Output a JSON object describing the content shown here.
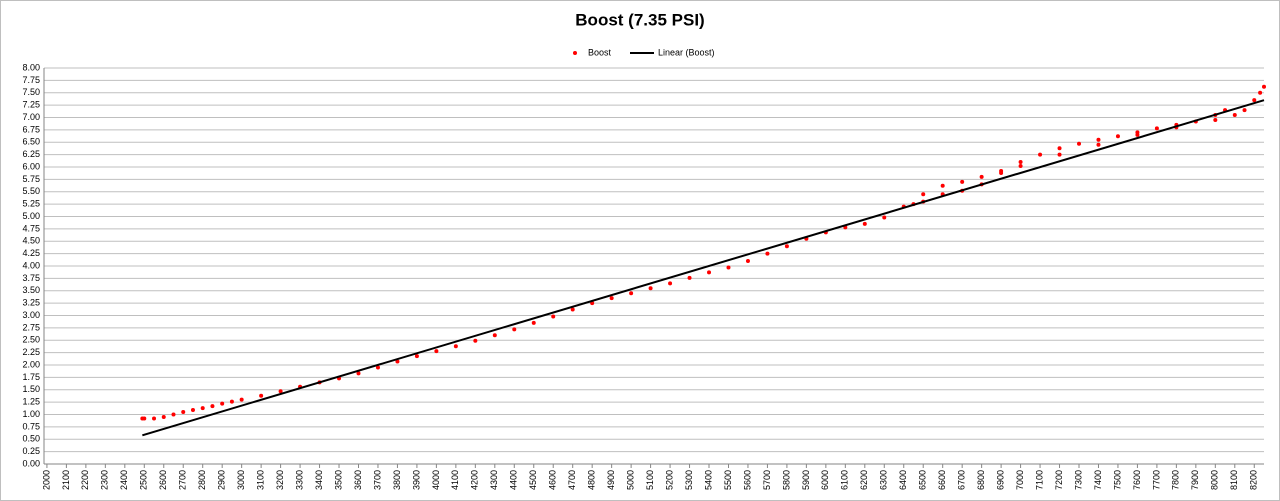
{
  "chart_data": {
    "type": "scatter",
    "title": "Boost (7.35 PSI)",
    "xlim": [
      1985,
      8250
    ],
    "ylim": [
      0,
      8
    ],
    "xticks": [
      2000,
      2100,
      2200,
      2300,
      2400,
      2500,
      2600,
      2700,
      2800,
      2900,
      3000,
      3100,
      3200,
      3300,
      3400,
      3500,
      3600,
      3700,
      3800,
      3900,
      4000,
      4100,
      4200,
      4300,
      4400,
      4500,
      4600,
      4700,
      4800,
      4900,
      5000,
      5100,
      5200,
      5300,
      5400,
      5500,
      5600,
      5700,
      5800,
      5900,
      6000,
      6100,
      6200,
      6300,
      6400,
      6500,
      6600,
      6700,
      6800,
      6900,
      7000,
      7100,
      7200,
      7300,
      7400,
      7500,
      7600,
      7700,
      7800,
      7900,
      8000,
      8100,
      8200
    ],
    "yticks": [
      {
        "value": 0,
        "label": "0.00"
      },
      {
        "value": 0.25,
        "label": "0.25"
      },
      {
        "value": 0.5,
        "label": "0.50"
      },
      {
        "value": 0.75,
        "label": "0.75"
      },
      {
        "value": 1,
        "label": "1.00"
      },
      {
        "value": 1.25,
        "label": "1.25"
      },
      {
        "value": 1.5,
        "label": "1.50"
      },
      {
        "value": 1.75,
        "label": "1.75"
      },
      {
        "value": 2,
        "label": "2.00"
      },
      {
        "value": 2.25,
        "label": "2.25"
      },
      {
        "value": 2.5,
        "label": "2.50"
      },
      {
        "value": 2.75,
        "label": "2.75"
      },
      {
        "value": 3,
        "label": "3.00"
      },
      {
        "value": 3.25,
        "label": "3.25"
      },
      {
        "value": 3.5,
        "label": "3.50"
      },
      {
        "value": 3.75,
        "label": "3.75"
      },
      {
        "value": 4,
        "label": "4.00"
      },
      {
        "value": 4.25,
        "label": "4.25"
      },
      {
        "value": 4.5,
        "label": "4.50"
      },
      {
        "value": 4.75,
        "label": "4.75"
      },
      {
        "value": 5,
        "label": "5.00"
      },
      {
        "value": 5.25,
        "label": "5.25"
      },
      {
        "value": 5.5,
        "label": "5.50"
      },
      {
        "value": 5.75,
        "label": "5.75"
      },
      {
        "value": 6,
        "label": "6.00"
      },
      {
        "value": 6.25,
        "label": "6.25"
      },
      {
        "value": 6.5,
        "label": "6.50"
      },
      {
        "value": 6.75,
        "label": "6.75"
      },
      {
        "value": 7,
        "label": "7.00"
      },
      {
        "value": 7.25,
        "label": "7.25"
      },
      {
        "value": 7.5,
        "label": "7.50"
      },
      {
        "value": 7.75,
        "label": "7.75"
      },
      {
        "value": 8,
        "label": "8.00"
      }
    ],
    "grid": true,
    "legend": "top",
    "series": [
      {
        "name": "Boost",
        "type": "scatter",
        "color": "#ff0000",
        "x": [
          2490,
          2500,
          2550,
          2600,
          2650,
          2700,
          2750,
          2800,
          2850,
          2900,
          2950,
          3000,
          3100,
          3200,
          3300,
          3400,
          3500,
          3600,
          3700,
          3800,
          3900,
          4000,
          4100,
          4200,
          4300,
          4400,
          4500,
          4600,
          4700,
          4800,
          4900,
          5000,
          5100,
          5200,
          5300,
          5400,
          5500,
          5600,
          5700,
          5800,
          5900,
          6000,
          6100,
          6200,
          6300,
          6400,
          6500,
          6600,
          6700,
          6800,
          6900,
          7000,
          7100,
          7200,
          7300,
          7400,
          7500,
          7600,
          7700,
          7800,
          7900,
          8000,
          8100,
          8150,
          8200,
          8230,
          8250,
          6450,
          6500,
          6600,
          6700,
          6800,
          6900,
          7000,
          7200,
          7400,
          7600,
          7800,
          8000,
          8050
        ],
        "values": [
          0.92,
          0.92,
          0.92,
          0.95,
          1.0,
          1.05,
          1.09,
          1.13,
          1.17,
          1.22,
          1.26,
          1.3,
          1.38,
          1.47,
          1.56,
          1.65,
          1.73,
          1.83,
          1.95,
          2.07,
          2.18,
          2.28,
          2.38,
          2.49,
          2.6,
          2.72,
          2.85,
          2.98,
          3.12,
          3.25,
          3.35,
          3.45,
          3.55,
          3.65,
          3.76,
          3.87,
          3.97,
          4.1,
          4.25,
          4.4,
          4.55,
          4.68,
          4.78,
          4.85,
          4.98,
          5.2,
          5.45,
          5.62,
          5.7,
          5.8,
          5.92,
          6.1,
          6.25,
          6.38,
          6.47,
          6.55,
          6.62,
          6.7,
          6.78,
          6.85,
          6.92,
          6.95,
          7.05,
          7.15,
          7.35,
          7.5,
          7.62,
          5.25,
          5.3,
          5.45,
          5.52,
          5.65,
          5.88,
          6.02,
          6.25,
          6.45,
          6.65,
          6.8,
          7.05,
          7.15
        ]
      },
      {
        "name": "Linear (Boost)",
        "type": "line",
        "color": "#000000",
        "x": [
          2490,
          8250
        ],
        "values": [
          0.58,
          7.35
        ]
      }
    ]
  }
}
